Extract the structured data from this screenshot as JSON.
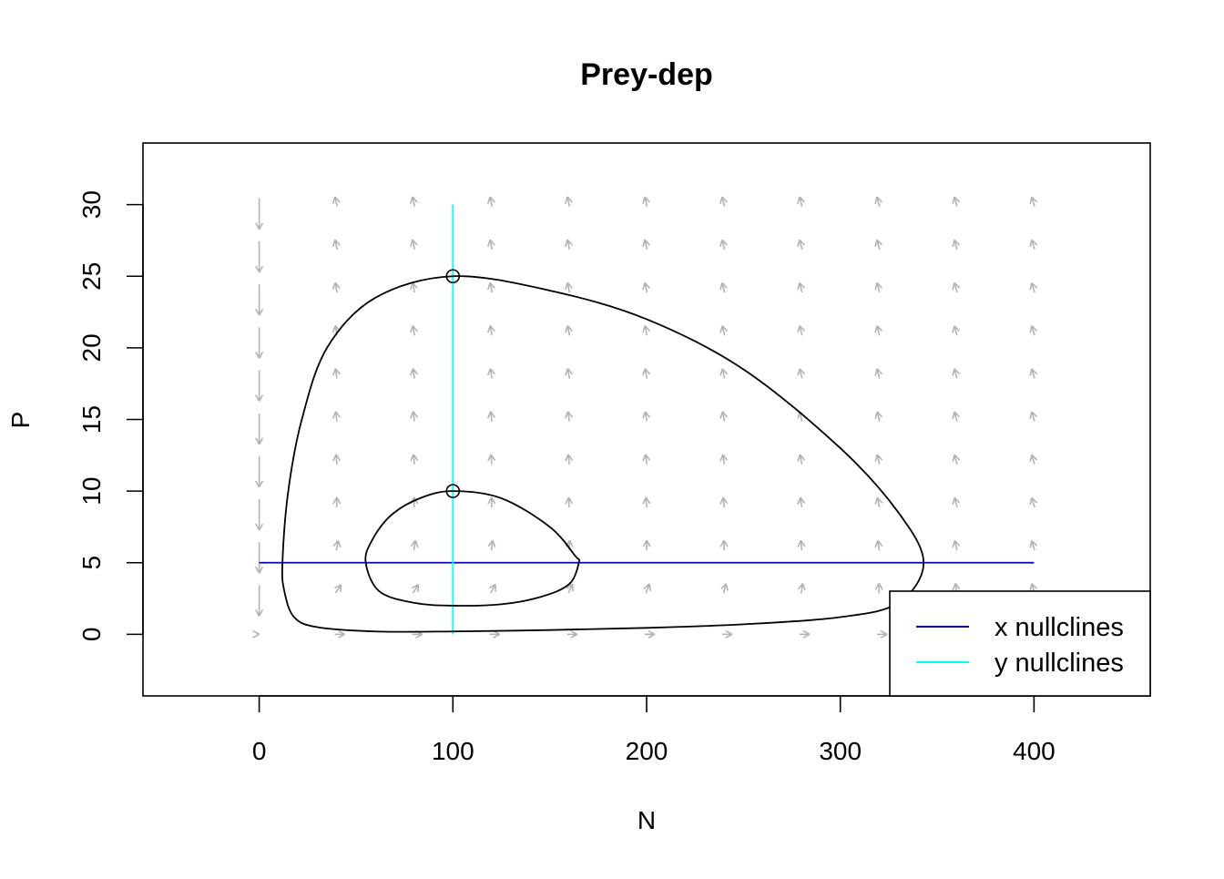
{
  "chart_data": {
    "type": "line",
    "title": "Prey-dep",
    "xlabel": "N",
    "ylabel": "P",
    "xlim": [
      -60,
      460
    ],
    "ylim": [
      -4.3,
      34.3
    ],
    "xticks": [
      0,
      100,
      200,
      300,
      400
    ],
    "yticks": [
      0,
      5,
      10,
      15,
      20,
      25,
      30
    ],
    "grid": false,
    "legend": {
      "position": "bottom-right",
      "entries": [
        {
          "label": "x nullclines",
          "color": "#0000ff"
        },
        {
          "label": "y nullclines",
          "color": "#00ffff"
        }
      ]
    },
    "nullclines": {
      "x": {
        "P": 5,
        "N_range": [
          0,
          400
        ],
        "color": "#0000ff"
      },
      "y": {
        "N": 100,
        "P_range": [
          0,
          30
        ],
        "color": "#00ffff"
      }
    },
    "trajectories": [
      {
        "start": [
          100,
          25
        ],
        "color": "#000000",
        "points": [
          [
            100,
            25
          ],
          [
            150,
            24
          ],
          [
            200,
            22
          ],
          [
            250,
            18.5
          ],
          [
            300,
            13
          ],
          [
            330,
            8.5
          ],
          [
            343,
            5
          ],
          [
            330,
            2.2
          ],
          [
            300,
            1.2
          ],
          [
            250,
            0.7
          ],
          [
            200,
            0.45
          ],
          [
            150,
            0.3
          ],
          [
            100,
            0.2
          ],
          [
            60,
            0.2
          ],
          [
            30,
            0.5
          ],
          [
            18,
            1.2
          ],
          [
            13,
            3
          ],
          [
            12,
            5
          ],
          [
            15,
            10
          ],
          [
            22,
            15
          ],
          [
            35,
            20
          ],
          [
            60,
            23.5
          ],
          [
            100,
            25
          ]
        ]
      },
      {
        "start": [
          100,
          10
        ],
        "color": "#000000",
        "points": [
          [
            100,
            10
          ],
          [
            125,
            9.5
          ],
          [
            150,
            7.5
          ],
          [
            163,
            5.5
          ],
          [
            165,
            5
          ],
          [
            160,
            3.5
          ],
          [
            145,
            2.6
          ],
          [
            125,
            2.1
          ],
          [
            100,
            2
          ],
          [
            80,
            2.2
          ],
          [
            62,
            3
          ],
          [
            55,
            5
          ],
          [
            58,
            6.5
          ],
          [
            68,
            8.3
          ],
          [
            83,
            9.5
          ],
          [
            100,
            10
          ]
        ]
      }
    ],
    "vector_field": {
      "color": "#b3b3b3",
      "N_values": [
        0,
        40,
        80,
        120,
        160,
        200,
        240,
        280,
        320,
        360,
        400
      ],
      "P_values": [
        0,
        3,
        6,
        9,
        12,
        15,
        18,
        21,
        24,
        27,
        30
      ]
    }
  }
}
